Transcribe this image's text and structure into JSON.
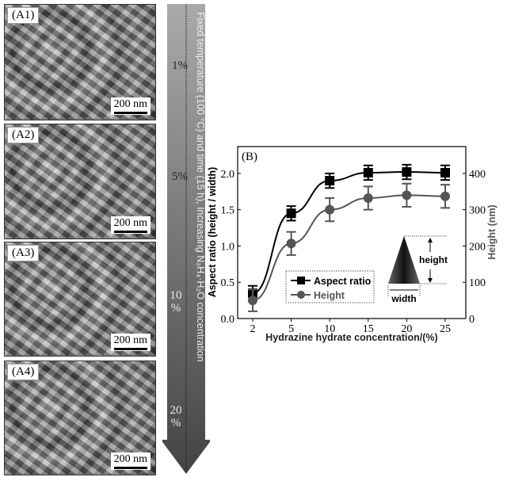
{
  "panels": [
    {
      "label": "(A1)",
      "scale": "200 nm"
    },
    {
      "label": "(A2)",
      "scale": "200 nm"
    },
    {
      "label": "(A3)",
      "scale": "200 nm"
    },
    {
      "label": "(A4)",
      "scale": "200 nm"
    }
  ],
  "arrow": {
    "text": "Fixed temperature (100 °C) and time (15 h), Increasing N₂H₄·H₂O concentration",
    "marks": [
      "1%",
      "5%",
      "10 %",
      "20 %"
    ]
  },
  "chart_data": {
    "type": "line",
    "panel_label": "(B)",
    "categories": [
      "2",
      "5",
      "10",
      "15",
      "20",
      "25"
    ],
    "xlabel": "Hydrazine hydrate concentration/(%)",
    "ylabel": "Aspect ratio (height / width)",
    "ylim": [
      0,
      2.37
    ],
    "yticks": [
      "0.0",
      "0.5",
      "1.0",
      "1.5",
      "2.0"
    ],
    "y2label": "Height (nm)",
    "y2lim": [
      0,
      474
    ],
    "y2ticks": [
      "0",
      "100",
      "200",
      "300",
      "400"
    ],
    "series": [
      {
        "name": "Aspect ratio",
        "axis": "left",
        "marker": "square",
        "color": "#000000",
        "values": [
          0.35,
          1.45,
          1.9,
          2.01,
          2.02,
          2.01
        ],
        "errors": [
          0.1,
          0.1,
          0.1,
          0.1,
          0.1,
          0.1
        ]
      },
      {
        "name": "Height",
        "axis": "right",
        "marker": "circle",
        "color": "#555555",
        "values": [
          50,
          207,
          300,
          332,
          340,
          337
        ],
        "errors": [
          30,
          32,
          32,
          32,
          32,
          32
        ]
      }
    ],
    "legend": "bottom-center",
    "inset": {
      "height_label": "height",
      "width_label": "width"
    }
  }
}
